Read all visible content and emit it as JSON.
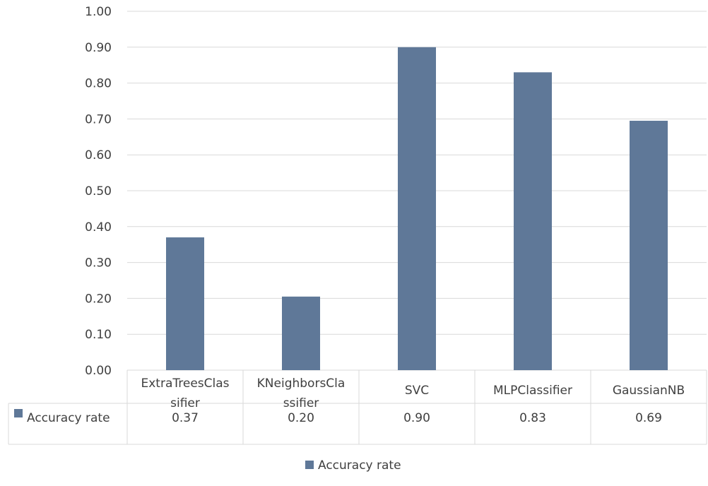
{
  "chart_data": {
    "type": "bar",
    "title": "",
    "xlabel": "",
    "ylabel": "",
    "ylim": [
      0,
      1.0
    ],
    "yticks": [
      "0.00",
      "0.10",
      "0.20",
      "0.30",
      "0.40",
      "0.50",
      "0.60",
      "0.70",
      "0.80",
      "0.90",
      "1.00"
    ],
    "categories": [
      [
        "ExtraTreesClas",
        "sifier"
      ],
      [
        "KNeighborsCla",
        "ssifier"
      ],
      [
        "SVC"
      ],
      [
        "MLPClassifier"
      ],
      [
        "GaussianNB"
      ]
    ],
    "series": [
      {
        "name": "Accuracy rate",
        "values": [
          0.37,
          0.205,
          0.9,
          0.83,
          0.695
        ],
        "labels": [
          "0.37",
          "0.20",
          "0.90",
          "0.83",
          "0.69"
        ],
        "color": "#5f7898"
      }
    ],
    "grid": true,
    "data_table": true,
    "legend": "bottom-center"
  },
  "colors": {
    "bar": "#5f7898",
    "grid": "#d9d9d9",
    "text": "#404040"
  }
}
